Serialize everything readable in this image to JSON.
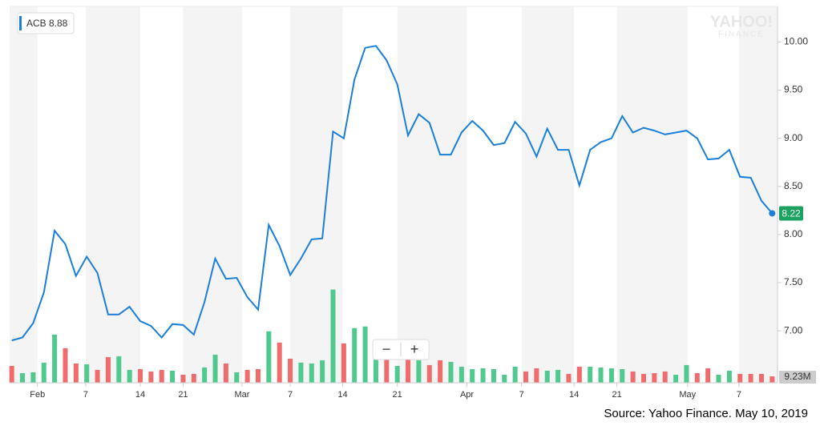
{
  "chart_data": {
    "type": "line",
    "symbol": "ACB",
    "legend_value": "8.88",
    "watermark": [
      "YAHOO!",
      "FINANCE"
    ],
    "source": "Source: Yahoo Finance. May 10, 2019",
    "zoom": [
      "−",
      "+"
    ],
    "last_label": "8.22",
    "series": [
      {
        "name": "ACB",
        "color": "#1a7fd9",
        "values": [
          6.9,
          6.93,
          7.08,
          7.4,
          8.04,
          7.9,
          7.57,
          7.77,
          7.6,
          7.17,
          7.17,
          7.25,
          7.1,
          7.05,
          6.93,
          7.07,
          7.06,
          6.96,
          7.3,
          7.75,
          7.54,
          7.55,
          7.35,
          7.22,
          8.1,
          7.88,
          7.58,
          7.75,
          7.95,
          7.96,
          9.07,
          9.0,
          9.61,
          9.94,
          9.96,
          9.81,
          9.56,
          9.03,
          9.25,
          9.16,
          8.83,
          8.83,
          9.06,
          9.18,
          9.08,
          8.93,
          8.95,
          9.17,
          9.05,
          8.81,
          9.1,
          8.88,
          8.88,
          8.51,
          8.88,
          8.96,
          9.0,
          9.23,
          9.06,
          9.11,
          9.08,
          9.04,
          9.06,
          9.08,
          9.0,
          8.78,
          8.79,
          8.88,
          8.6,
          8.59,
          8.35,
          8.22
        ]
      }
    ],
    "volume": {
      "values": [
        24.2,
        13.8,
        15.0,
        28.9,
        69.2,
        49.6,
        27.7,
        26.5,
        18.5,
        36.9,
        38.1,
        18.5,
        19.6,
        16.2,
        18.5,
        17.3,
        11.5,
        12.7,
        21.9,
        40.4,
        27.7,
        15.0,
        18.5,
        19.6,
        73.9,
        57.7,
        34.6,
        28.9,
        27.7,
        32.3,
        133.9,
        56.5,
        78.5,
        80.8,
        34.6,
        33.5,
        24.2,
        34.6,
        32.3,
        25.4,
        32.3,
        30.0,
        23.1,
        19.6,
        20.8,
        19.6,
        11.5,
        23.1,
        16.2,
        20.8,
        17.3,
        18.5,
        12.7,
        23.1,
        23.1,
        21.9,
        20.8,
        19.6,
        16.2,
        12.7,
        13.8,
        16.2,
        11.5,
        25.4,
        13.8,
        20.8,
        11.5,
        17.3,
        12.7,
        12.7,
        12.7,
        9.23
      ],
      "value_labels": {
        "71": "9.23M"
      },
      "colors": [
        "#f06b6b",
        "#4fc98e",
        "#4fc98e",
        "#4fc98e",
        "#4fc98e",
        "#f06b6b",
        "#f06b6b",
        "#4fc98e",
        "#f06b6b",
        "#f06b6b",
        "#4fc98e",
        "#4fc98e",
        "#f06b6b",
        "#f06b6b",
        "#f06b6b",
        "#4fc98e",
        "#f06b6b",
        "#f06b6b",
        "#4fc98e",
        "#4fc98e",
        "#f06b6b",
        "#4fc98e",
        "#f06b6b",
        "#f06b6b",
        "#4fc98e",
        "#f06b6b",
        "#f06b6b",
        "#4fc98e",
        "#4fc98e",
        "#4fc98e",
        "#4fc98e",
        "#f06b6b",
        "#4fc98e",
        "#4fc98e",
        "#4fc98e",
        "#f06b6b",
        "#4fc98e",
        "#f06b6b",
        "#4fc98e",
        "#f06b6b",
        "#f06b6b",
        "#4fc98e",
        "#4fc98e",
        "#4fc98e",
        "#4fc98e",
        "#4fc98e",
        "#4fc98e",
        "#4fc98e",
        "#f06b6b",
        "#f06b6b",
        "#4fc98e",
        "#4fc98e",
        "#f06b6b",
        "#f06b6b",
        "#4fc98e",
        "#4fc98e",
        "#4fc98e",
        "#4fc98e",
        "#f06b6b",
        "#f06b6b",
        "#f06b6b",
        "#f06b6b",
        "#4fc98e",
        "#4fc98e",
        "#f06b6b",
        "#f06b6b",
        "#4fc98e",
        "#4fc98e",
        "#f06b6b",
        "#f06b6b",
        "#f06b6b",
        "#f06b6b"
      ],
      "ylim": [
        0,
        138
      ]
    },
    "xlim": [
      -0.2,
      71.5
    ],
    "xticks": [
      {
        "value": 2.4,
        "label": "Feb"
      },
      {
        "value": 6.9,
        "label": "7"
      },
      {
        "value": 12.0,
        "label": "14"
      },
      {
        "value": 16.0,
        "label": "21"
      },
      {
        "value": 21.5,
        "label": "Mar"
      },
      {
        "value": 26.0,
        "label": "7"
      },
      {
        "value": 30.9,
        "label": "14"
      },
      {
        "value": 36.0,
        "label": "21"
      },
      {
        "value": 42.5,
        "label": "Apr"
      },
      {
        "value": 47.6,
        "label": "7"
      },
      {
        "value": 52.5,
        "label": "14"
      },
      {
        "value": 56.5,
        "label": "21"
      },
      {
        "value": 63.1,
        "label": "May"
      },
      {
        "value": 67.9,
        "label": "7"
      }
    ],
    "ylim": [
      6.46,
      10.37
    ],
    "yticks": [
      {
        "value": 7,
        "label": "7.00"
      },
      {
        "value": 7.5,
        "label": "7.50"
      },
      {
        "value": 8,
        "label": "8.00"
      },
      {
        "value": 8.5,
        "label": "8.50"
      },
      {
        "value": 9,
        "label": "9.00"
      },
      {
        "value": 9.5,
        "label": "9.50"
      },
      {
        "value": 10,
        "label": "10.00"
      }
    ]
  }
}
